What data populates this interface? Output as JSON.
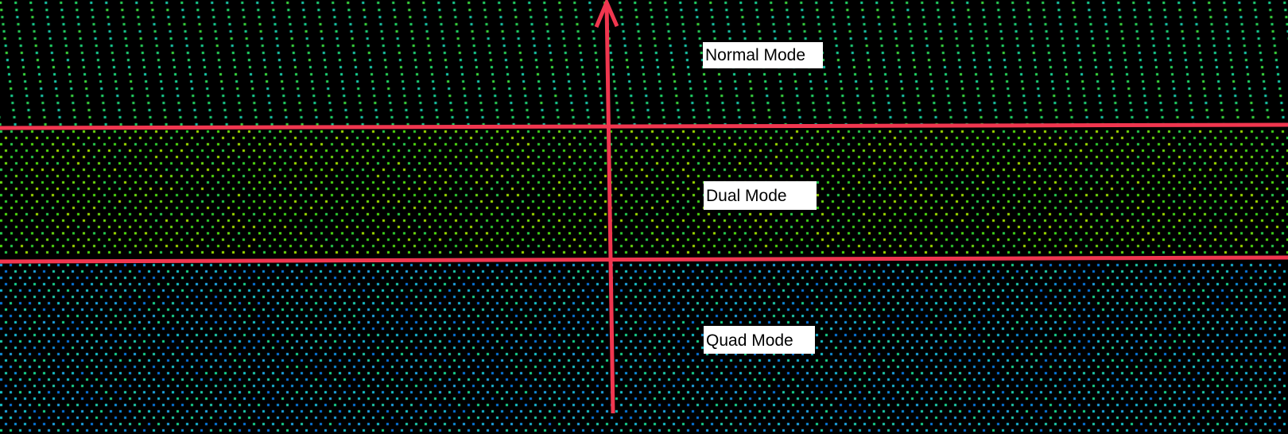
{
  "labels": {
    "normal": "Normal Mode",
    "dual": "Dual Mode",
    "quad": "Quad Mode"
  },
  "colors": {
    "background": "#000000",
    "annotation_line": "#f0364f",
    "normal_points": "#1fd87a",
    "dual_points": "#3fd81a",
    "quad_points": "#1ab8d8"
  }
}
